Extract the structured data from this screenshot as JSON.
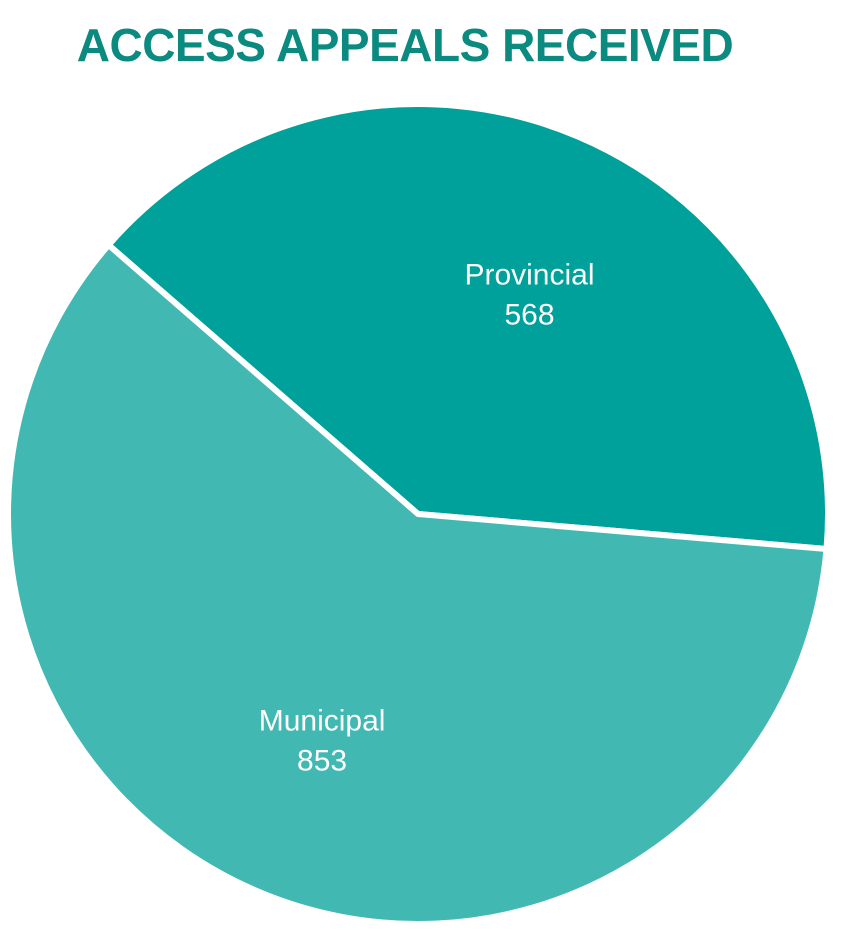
{
  "chart_data": {
    "type": "pie",
    "title": "ACCESS APPEALS RECEIVED",
    "slices": [
      {
        "name": "Provincial",
        "value": 568,
        "color": "#00a19a"
      },
      {
        "name": "Municipal",
        "value": 853,
        "color": "#42b8b3"
      }
    ],
    "legend": "none",
    "label_position": "inside",
    "separator_color": "#ffffff"
  }
}
